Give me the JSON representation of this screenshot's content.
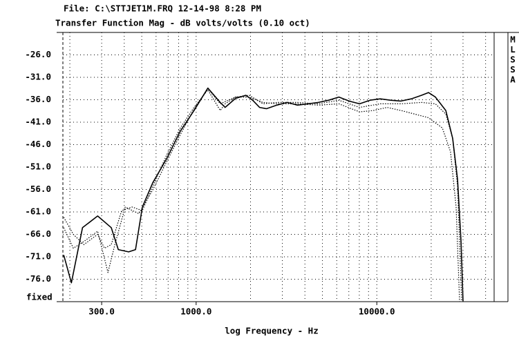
{
  "chart_data": {
    "type": "line",
    "title": "File: C:\\STTJET1M.FRQ 12-14-98 8:28 PM",
    "subtitle": "Transfer Function Mag - dB volts/volts (0.10 oct)",
    "x_label": "log Frequency - Hz",
    "y_annotation": "fixed",
    "side_label": [
      "M",
      "L",
      "S",
      "S",
      "A"
    ],
    "xscale": "log",
    "xlim": [
      183,
      44600
    ],
    "ylim": [
      -81,
      -21
    ],
    "xticks": [
      {
        "value": 300,
        "label": "300.0"
      },
      {
        "value": 1000,
        "label": "1000.0"
      },
      {
        "value": 10000,
        "label": "10000.0"
      }
    ],
    "xgrid": [
      200,
      300,
      400,
      500,
      600,
      700,
      800,
      900,
      1000,
      2000,
      3000,
      4000,
      5000,
      6000,
      7000,
      8000,
      9000,
      10000,
      20000,
      30000,
      40000
    ],
    "yticks": [
      {
        "value": -26,
        "label": "-26.0"
      },
      {
        "value": -31,
        "label": "-31.0"
      },
      {
        "value": -36,
        "label": "-36.0"
      },
      {
        "value": -41,
        "label": "-41.0"
      },
      {
        "value": -46,
        "label": "-46.0"
      },
      {
        "value": -51,
        "label": "-51.0"
      },
      {
        "value": -56,
        "label": "-56.0"
      },
      {
        "value": -61,
        "label": "-61.0"
      },
      {
        "value": -66,
        "label": "-66.0"
      },
      {
        "value": -71,
        "label": "-71.0"
      },
      {
        "value": -76,
        "label": "-76.0"
      }
    ],
    "grid": true,
    "series": [
      {
        "color": "#000000",
        "dash": "solid",
        "x": [
          185,
          204,
          235,
          285,
          339,
          371,
          423,
          462,
          504,
          575,
          685,
          817,
          974,
          1161,
          1360,
          1446,
          1651,
          1883,
          2055,
          2244,
          2451,
          2797,
          3190,
          3640,
          4150,
          4740,
          5410,
          6170,
          7030,
          8030,
          9160,
          10450,
          11920,
          13600,
          15520,
          17700,
          19320,
          21090,
          24090,
          26300,
          27990,
          29240,
          30000
        ],
        "values": [
          -70.6,
          -76.8,
          -64.5,
          -61.9,
          -64.5,
          -69.4,
          -69.9,
          -69.4,
          -59.9,
          -54.5,
          -49.2,
          -43.0,
          -38.4,
          -33.4,
          -36.6,
          -37.7,
          -35.7,
          -35.0,
          -36.1,
          -37.7,
          -38.0,
          -37.2,
          -36.6,
          -37.2,
          -36.9,
          -36.6,
          -36.1,
          -35.4,
          -36.3,
          -36.9,
          -36.1,
          -35.8,
          -36.1,
          -36.3,
          -35.8,
          -35.0,
          -34.4,
          -35.4,
          -38.4,
          -44.6,
          -53.8,
          -67.6,
          -80.9
        ]
      },
      {
        "color": "#000000",
        "dash": "dotted",
        "x": [
          185,
          209,
          239,
          285,
          311,
          339,
          387,
          442,
          504,
          575,
          685,
          817,
          974,
          1161,
          1360,
          1446,
          1651,
          1968,
          2345,
          2797,
          3640,
          4740,
          6170,
          8030,
          10450,
          13600,
          17700,
          21090,
          24090,
          26300,
          27990,
          29480
        ],
        "values": [
          -62.2,
          -66.0,
          -68.3,
          -66.0,
          -69.1,
          -68.3,
          -60.7,
          -59.9,
          -60.7,
          -55.3,
          -48.4,
          -42.3,
          -37.7,
          -33.8,
          -38.4,
          -36.9,
          -35.4,
          -35.0,
          -36.9,
          -36.6,
          -36.6,
          -36.9,
          -36.1,
          -37.7,
          -36.9,
          -36.9,
          -36.6,
          -36.9,
          -39.2,
          -44.6,
          -55.3,
          -80.9
        ]
      },
      {
        "color": "#000000",
        "dash": "dotted",
        "x": [
          185,
          209,
          239,
          285,
          311,
          325,
          355,
          405,
          482,
          575,
          685,
          817,
          974,
          1161,
          1360,
          1651,
          1968,
          2345,
          2797,
          3640,
          4740,
          6170,
          8030,
          9570,
          11400,
          13600,
          16220,
          19320,
          23050,
          25590,
          27480,
          28710
        ],
        "values": [
          -64.5,
          -69.1,
          -67.6,
          -65.3,
          -71.4,
          -74.5,
          -68.3,
          -59.9,
          -61.4,
          -56.1,
          -49.9,
          -43.8,
          -38.1,
          -33.5,
          -36.9,
          -35.4,
          -35.4,
          -36.6,
          -36.9,
          -36.9,
          -37.2,
          -36.9,
          -38.7,
          -38.4,
          -37.7,
          -38.4,
          -39.2,
          -40.0,
          -42.3,
          -47.6,
          -59.9,
          -80.9
        ]
      }
    ]
  }
}
